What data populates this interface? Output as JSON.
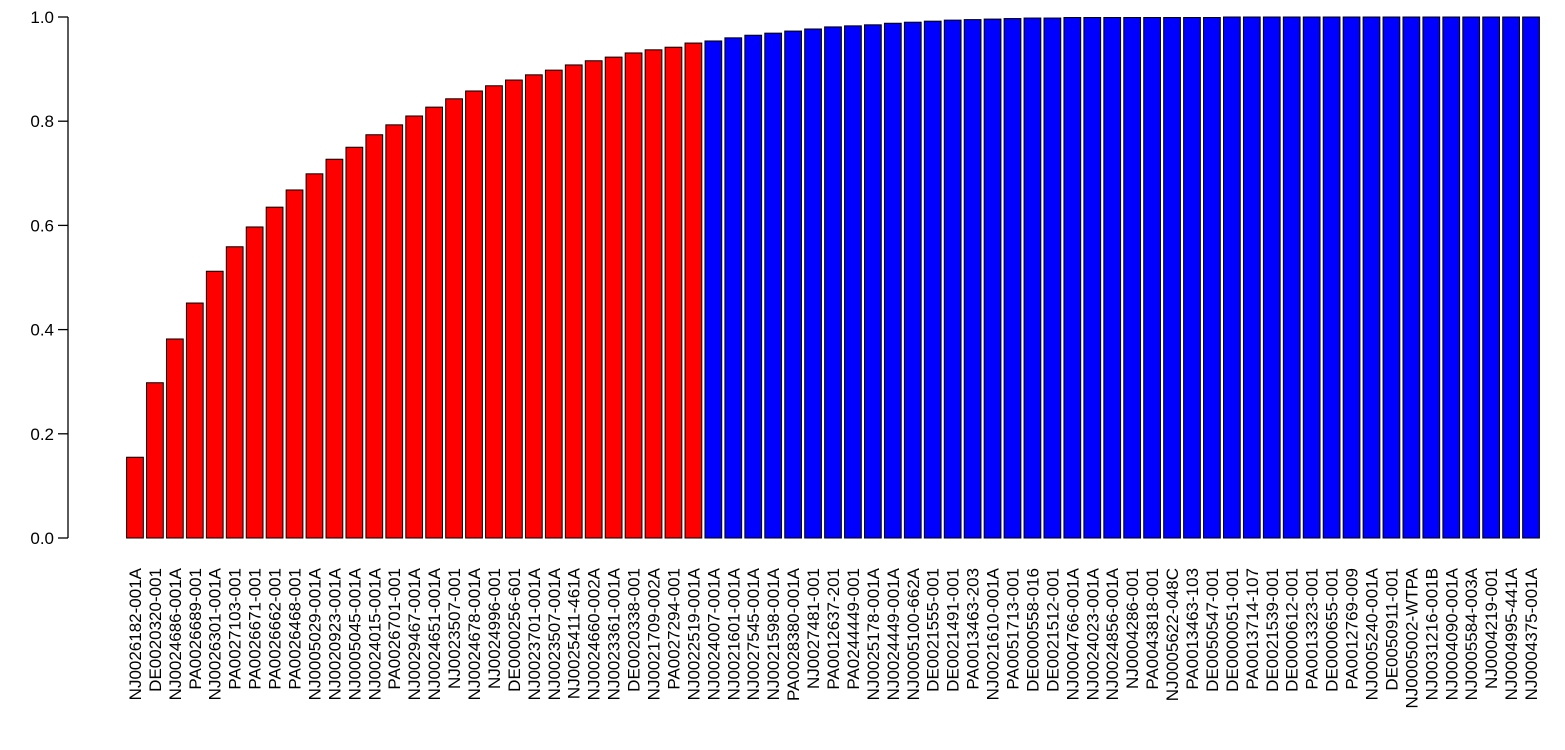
{
  "chart_data": {
    "type": "bar",
    "categories": [
      "NJ0026182-001A",
      "DE0020320-001",
      "NJ0024686-001A",
      "PA0026689-001",
      "NJ0026301-001A",
      "PA0027103-001",
      "PA0026671-001",
      "PA0026662-001",
      "PA0026468-001",
      "NJ0005029-001A",
      "NJ0020923-001A",
      "NJ0005045-001A",
      "NJ0024015-001A",
      "PA0026701-001",
      "NJ0029467-001A",
      "NJ0024651-001A",
      "NJ0023507-001",
      "NJ0024678-001A",
      "NJ0024996-001",
      "DE0000256-601",
      "NJ0023701-001A",
      "NJ0023507-001A",
      "NJ0025411-461A",
      "NJ0024660-002A",
      "NJ0023361-001A",
      "DE0020338-001",
      "NJ0021709-002A",
      "PA0027294-001",
      "NJ0022519-001A",
      "NJ0024007-001A",
      "NJ0021601-001A",
      "NJ0027545-001A",
      "NJ0021598-001A",
      "PA0028380-001A",
      "NJ0027481-001",
      "PA0012637-201",
      "PA0244449-001",
      "NJ0025178-001A",
      "NJ0024449-001A",
      "NJ0005100-662A",
      "DE0021555-001",
      "DE0021491-001",
      "PA0013463-203",
      "NJ0021610-001A",
      "PA0051713-001",
      "DE0000558-016",
      "DE0021512-001",
      "NJ0004766-001A",
      "NJ0024023-001A",
      "NJ0024856-001A",
      "NJ0004286-001",
      "PA0043818-001",
      "NJ0005622-048C",
      "PA0013463-103",
      "DE0050547-001",
      "DE0000051-001",
      "PA0013714-107",
      "DE0021539-001",
      "DE0000612-001",
      "PA0013323-001",
      "DE0000655-001",
      "PA0012769-009",
      "NJ0005240-001A",
      "DE0050911-001",
      "NJ0005002-WTPA",
      "NJ0031216-001B",
      "NJ0004090-001A",
      "NJ0005584-003A",
      "NJ0004219-001",
      "NJ0004995-441A",
      "NJ0004375-001A"
    ],
    "values": [
      0.155,
      0.298,
      0.382,
      0.451,
      0.512,
      0.559,
      0.597,
      0.635,
      0.668,
      0.699,
      0.727,
      0.75,
      0.774,
      0.793,
      0.81,
      0.827,
      0.843,
      0.858,
      0.868,
      0.879,
      0.889,
      0.898,
      0.908,
      0.916,
      0.923,
      0.931,
      0.937,
      0.942,
      0.95,
      0.954,
      0.96,
      0.965,
      0.969,
      0.973,
      0.977,
      0.981,
      0.983,
      0.985,
      0.988,
      0.99,
      0.992,
      0.994,
      0.995,
      0.996,
      0.997,
      0.998,
      0.998,
      0.999,
      0.999,
      0.999,
      0.999,
      0.999,
      0.999,
      0.999,
      0.999,
      1,
      1,
      1,
      1,
      1,
      1,
      1,
      1,
      1,
      1,
      1,
      1,
      1,
      1,
      1,
      1
    ],
    "colors": [
      "#ff0000",
      "#ff0000",
      "#ff0000",
      "#ff0000",
      "#ff0000",
      "#ff0000",
      "#ff0000",
      "#ff0000",
      "#ff0000",
      "#ff0000",
      "#ff0000",
      "#ff0000",
      "#ff0000",
      "#ff0000",
      "#ff0000",
      "#ff0000",
      "#ff0000",
      "#ff0000",
      "#ff0000",
      "#ff0000",
      "#ff0000",
      "#ff0000",
      "#ff0000",
      "#ff0000",
      "#ff0000",
      "#ff0000",
      "#ff0000",
      "#ff0000",
      "#ff0000",
      "#0000ff",
      "#0000ff",
      "#0000ff",
      "#0000ff",
      "#0000ff",
      "#0000ff",
      "#0000ff",
      "#0000ff",
      "#0000ff",
      "#0000ff",
      "#0000ff",
      "#0000ff",
      "#0000ff",
      "#0000ff",
      "#0000ff",
      "#0000ff",
      "#0000ff",
      "#0000ff",
      "#0000ff",
      "#0000ff",
      "#0000ff",
      "#0000ff",
      "#0000ff",
      "#0000ff",
      "#0000ff",
      "#0000ff",
      "#0000ff",
      "#0000ff",
      "#0000ff",
      "#0000ff",
      "#0000ff",
      "#0000ff",
      "#0000ff",
      "#0000ff",
      "#0000ff",
      "#0000ff",
      "#0000ff",
      "#0000ff",
      "#0000ff",
      "#0000ff",
      "#0000ff",
      "#0000ff"
    ],
    "ylim": [
      0,
      1
    ],
    "yticks": [
      {
        "value": 0,
        "label": "0.0"
      },
      0.2,
      0.4,
      0.6,
      0.8,
      {
        "value": 1,
        "label": "1.0"
      }
    ],
    "grid": false
  }
}
